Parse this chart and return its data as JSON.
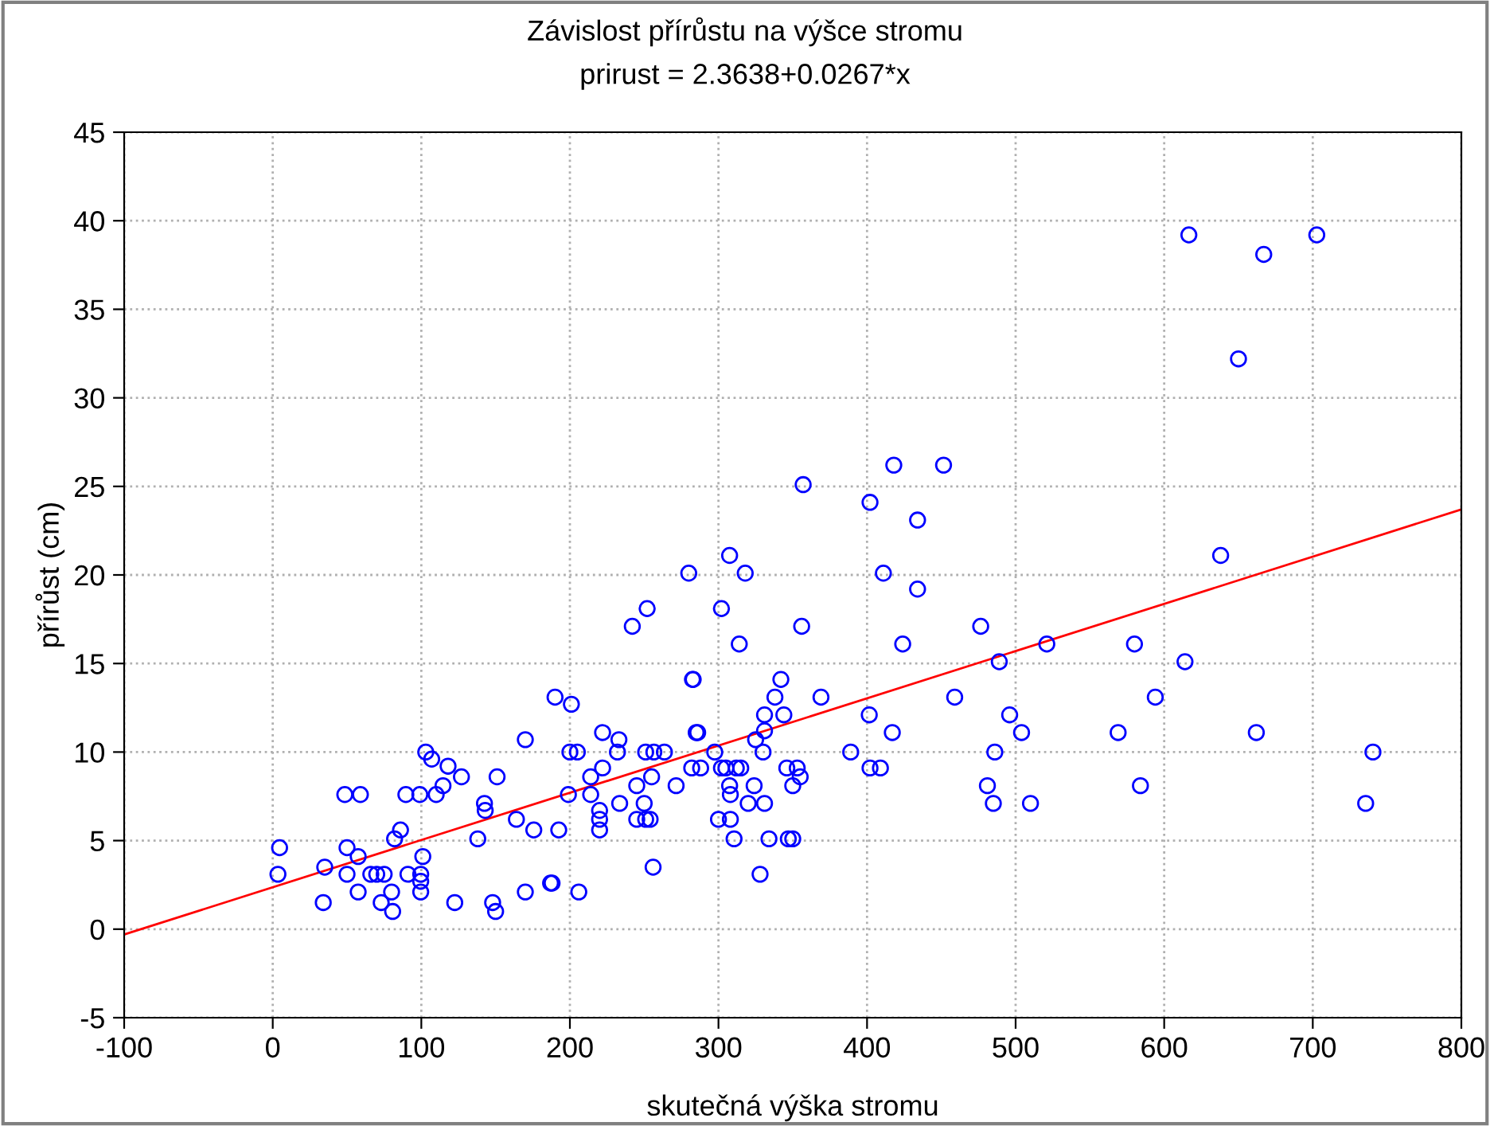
{
  "chart_data": {
    "type": "scatter",
    "title": "Závislost přírůstu na výšce stromu",
    "subtitle": "prirust = 2.3638+0.0267*x",
    "xlabel": "skutečná výška stromu",
    "ylabel": "přírůst (cm)",
    "xlim": [
      -100,
      800
    ],
    "ylim": [
      -5,
      45
    ],
    "xticks": [
      -100,
      0,
      100,
      200,
      300,
      400,
      500,
      600,
      700,
      800
    ],
    "yticks": [
      -5,
      0,
      5,
      10,
      15,
      20,
      25,
      30,
      35,
      40,
      45
    ],
    "grid": true,
    "marker": "circle",
    "series": [
      {
        "color": "#0000ff",
        "x": [
          357,
          307.5,
          280,
          318,
          252,
          302,
          242,
          356,
          314,
          282.5,
          283,
          190,
          201,
          342,
          338,
          369,
          331,
          344,
          285,
          286,
          222,
          233,
          331,
          325,
          200,
          205,
          232,
          251,
          256.5,
          263.6,
          297.5,
          330,
          389,
          222,
          282,
          288,
          302,
          305,
          312,
          315,
          346,
          353,
          214,
          255,
          355,
          245,
          271.5,
          307.5,
          324,
          350,
          199,
          214,
          308,
          233.5,
          250,
          320,
          331,
          220,
          220,
          220,
          245,
          251,
          254,
          300,
          308,
          192.5,
          310.5,
          334,
          347,
          350,
          256,
          188,
          206,
          328,
          402,
          434,
          411,
          434,
          476.5,
          424,
          521,
          580,
          489,
          614,
          459,
          594,
          401.5,
          496,
          417,
          504,
          569,
          486,
          402,
          409,
          481,
          584,
          485,
          510,
          616.6,
          667,
          702.7,
          650,
          418,
          451.5,
          638,
          662,
          740.5,
          735.6,
          170,
          103,
          107,
          118,
          127,
          151,
          114.6,
          48.5,
          59,
          89.6,
          99,
          110,
          142.5,
          143,
          164,
          175.7,
          86,
          82,
          138,
          4.6,
          50,
          57.5,
          101,
          35,
          3.5,
          50,
          66,
          70,
          75,
          91,
          99.6,
          99.6,
          99.6,
          187,
          57.5,
          80,
          170,
          34,
          73,
          122.5,
          148,
          150,
          80.7
        ],
        "values": [
          25.1,
          21.1,
          20.1,
          20.1,
          18.1,
          18.1,
          17.1,
          17.1,
          16.1,
          14.1,
          14.1,
          13.1,
          12.7,
          14.1,
          13.1,
          13.1,
          12.1,
          12.1,
          11.1,
          11.1,
          11.1,
          10.7,
          11.2,
          10.7,
          10.0,
          10.0,
          10.0,
          10.0,
          10.0,
          10.0,
          10.0,
          10.0,
          10.0,
          9.1,
          9.1,
          9.1,
          9.1,
          9.1,
          9.1,
          9.1,
          9.1,
          9.1,
          8.6,
          8.6,
          8.6,
          8.1,
          8.1,
          8.1,
          8.1,
          8.1,
          7.6,
          7.6,
          7.6,
          7.1,
          7.1,
          7.1,
          7.1,
          6.7,
          6.2,
          5.6,
          6.2,
          6.2,
          6.2,
          6.2,
          6.2,
          5.6,
          5.1,
          5.1,
          5.1,
          5.1,
          3.5,
          2.6,
          2.1,
          3.1,
          24.1,
          23.1,
          20.1,
          19.2,
          17.1,
          16.1,
          16.1,
          16.1,
          15.1,
          15.1,
          13.1,
          13.1,
          12.1,
          12.1,
          11.1,
          11.1,
          11.1,
          10.0,
          9.1,
          9.1,
          8.1,
          8.1,
          7.1,
          7.1,
          39.2,
          38.1,
          39.2,
          32.2,
          26.2,
          26.2,
          21.1,
          11.1,
          10.0,
          7.1,
          10.7,
          10.0,
          9.6,
          9.2,
          8.6,
          8.6,
          8.1,
          7.6,
          7.6,
          7.6,
          7.6,
          7.6,
          7.1,
          6.7,
          6.2,
          5.6,
          5.6,
          5.1,
          5.1,
          4.6,
          4.6,
          4.1,
          4.1,
          3.5,
          3.1,
          3.1,
          3.1,
          3.1,
          3.1,
          3.1,
          3.1,
          2.7,
          2.1,
          2.6,
          2.1,
          2.1,
          2.1,
          1.5,
          1.5,
          1.5,
          1.5,
          1.0,
          1.0
        ]
      },
      {
        "type": "line",
        "color": "#ff0000",
        "x": [
          -100,
          800
        ],
        "values": [
          -0.3,
          23.7
        ],
        "marker": "none",
        "line_style": "solid"
      }
    ]
  }
}
